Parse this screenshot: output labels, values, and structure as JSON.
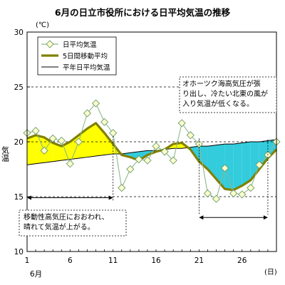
{
  "chart_data": {
    "type": "line",
    "title": "6月の日立市役所における日平均気温の推移",
    "unit_label": "(℃)",
    "ylabel": "気温",
    "x_unit_label": "(日)",
    "month_label": "6月",
    "xlim": [
      1,
      30
    ],
    "ylim": [
      10,
      30
    ],
    "yticks": [
      10,
      15,
      20,
      25,
      30
    ],
    "xticks": [
      1,
      6,
      11,
      16,
      21,
      26
    ],
    "dashed_reference_lines": [
      25,
      20,
      15
    ],
    "x": [
      1,
      2,
      3,
      4,
      5,
      6,
      7,
      8,
      9,
      10,
      11,
      12,
      13,
      14,
      15,
      16,
      17,
      18,
      19,
      20,
      21,
      22,
      23,
      24,
      25,
      26,
      27,
      28,
      29,
      30
    ],
    "series": [
      {
        "name": "日平均気温",
        "color": "#8db88d",
        "values": [
          20.8,
          21.0,
          19.2,
          20.3,
          20.1,
          18.0,
          20.0,
          22.6,
          23.5,
          21.8,
          20.8,
          15.8,
          17.5,
          18.4,
          18.3,
          19.6,
          19.1,
          18.3,
          21.7,
          20.6,
          19.8,
          15.3,
          14.8,
          17.6,
          15.3,
          15.2,
          15.8,
          17.9,
          18.8,
          20.0
        ]
      },
      {
        "name": "5日間移動平均",
        "color": "#808000",
        "values": [
          20.3,
          20.6,
          20.4,
          19.9,
          19.6,
          20.0,
          20.6,
          21.2,
          21.7,
          20.8,
          19.8,
          18.8,
          18.6,
          18.3,
          18.8,
          19.1,
          19.3,
          19.8,
          19.9,
          19.3,
          18.2,
          17.5,
          16.6,
          15.7,
          15.6,
          16.0,
          16.5,
          17.5,
          18.5,
          19.3
        ]
      },
      {
        "name": "平年日平均気温",
        "color": "#000000",
        "values": [
          17.9,
          18.0,
          18.1,
          18.2,
          18.3,
          18.4,
          18.5,
          18.6,
          18.7,
          18.8,
          18.9,
          18.9,
          19.0,
          19.1,
          19.2,
          19.2,
          19.3,
          19.4,
          19.4,
          19.5,
          19.6,
          19.6,
          19.7,
          19.8,
          19.8,
          19.9,
          20.0,
          20.0,
          20.1,
          20.2
        ]
      }
    ],
    "fill_above_color": "#ffff00",
    "fill_below_color": "#33ccdd",
    "annotations": [
      {
        "lines": [
          "移動性高気圧におおわれ、",
          "晴れて気温が上がる。"
        ],
        "arrow_range": [
          1,
          11
        ],
        "arrow_y": 14.9
      },
      {
        "lines": [
          "オホーツク海高気圧が張",
          "り出し、冷たい北東の風が",
          "入り気温が低くなる。"
        ],
        "arrow_range": [
          21,
          29
        ],
        "arrow_y": 13.1
      }
    ]
  }
}
